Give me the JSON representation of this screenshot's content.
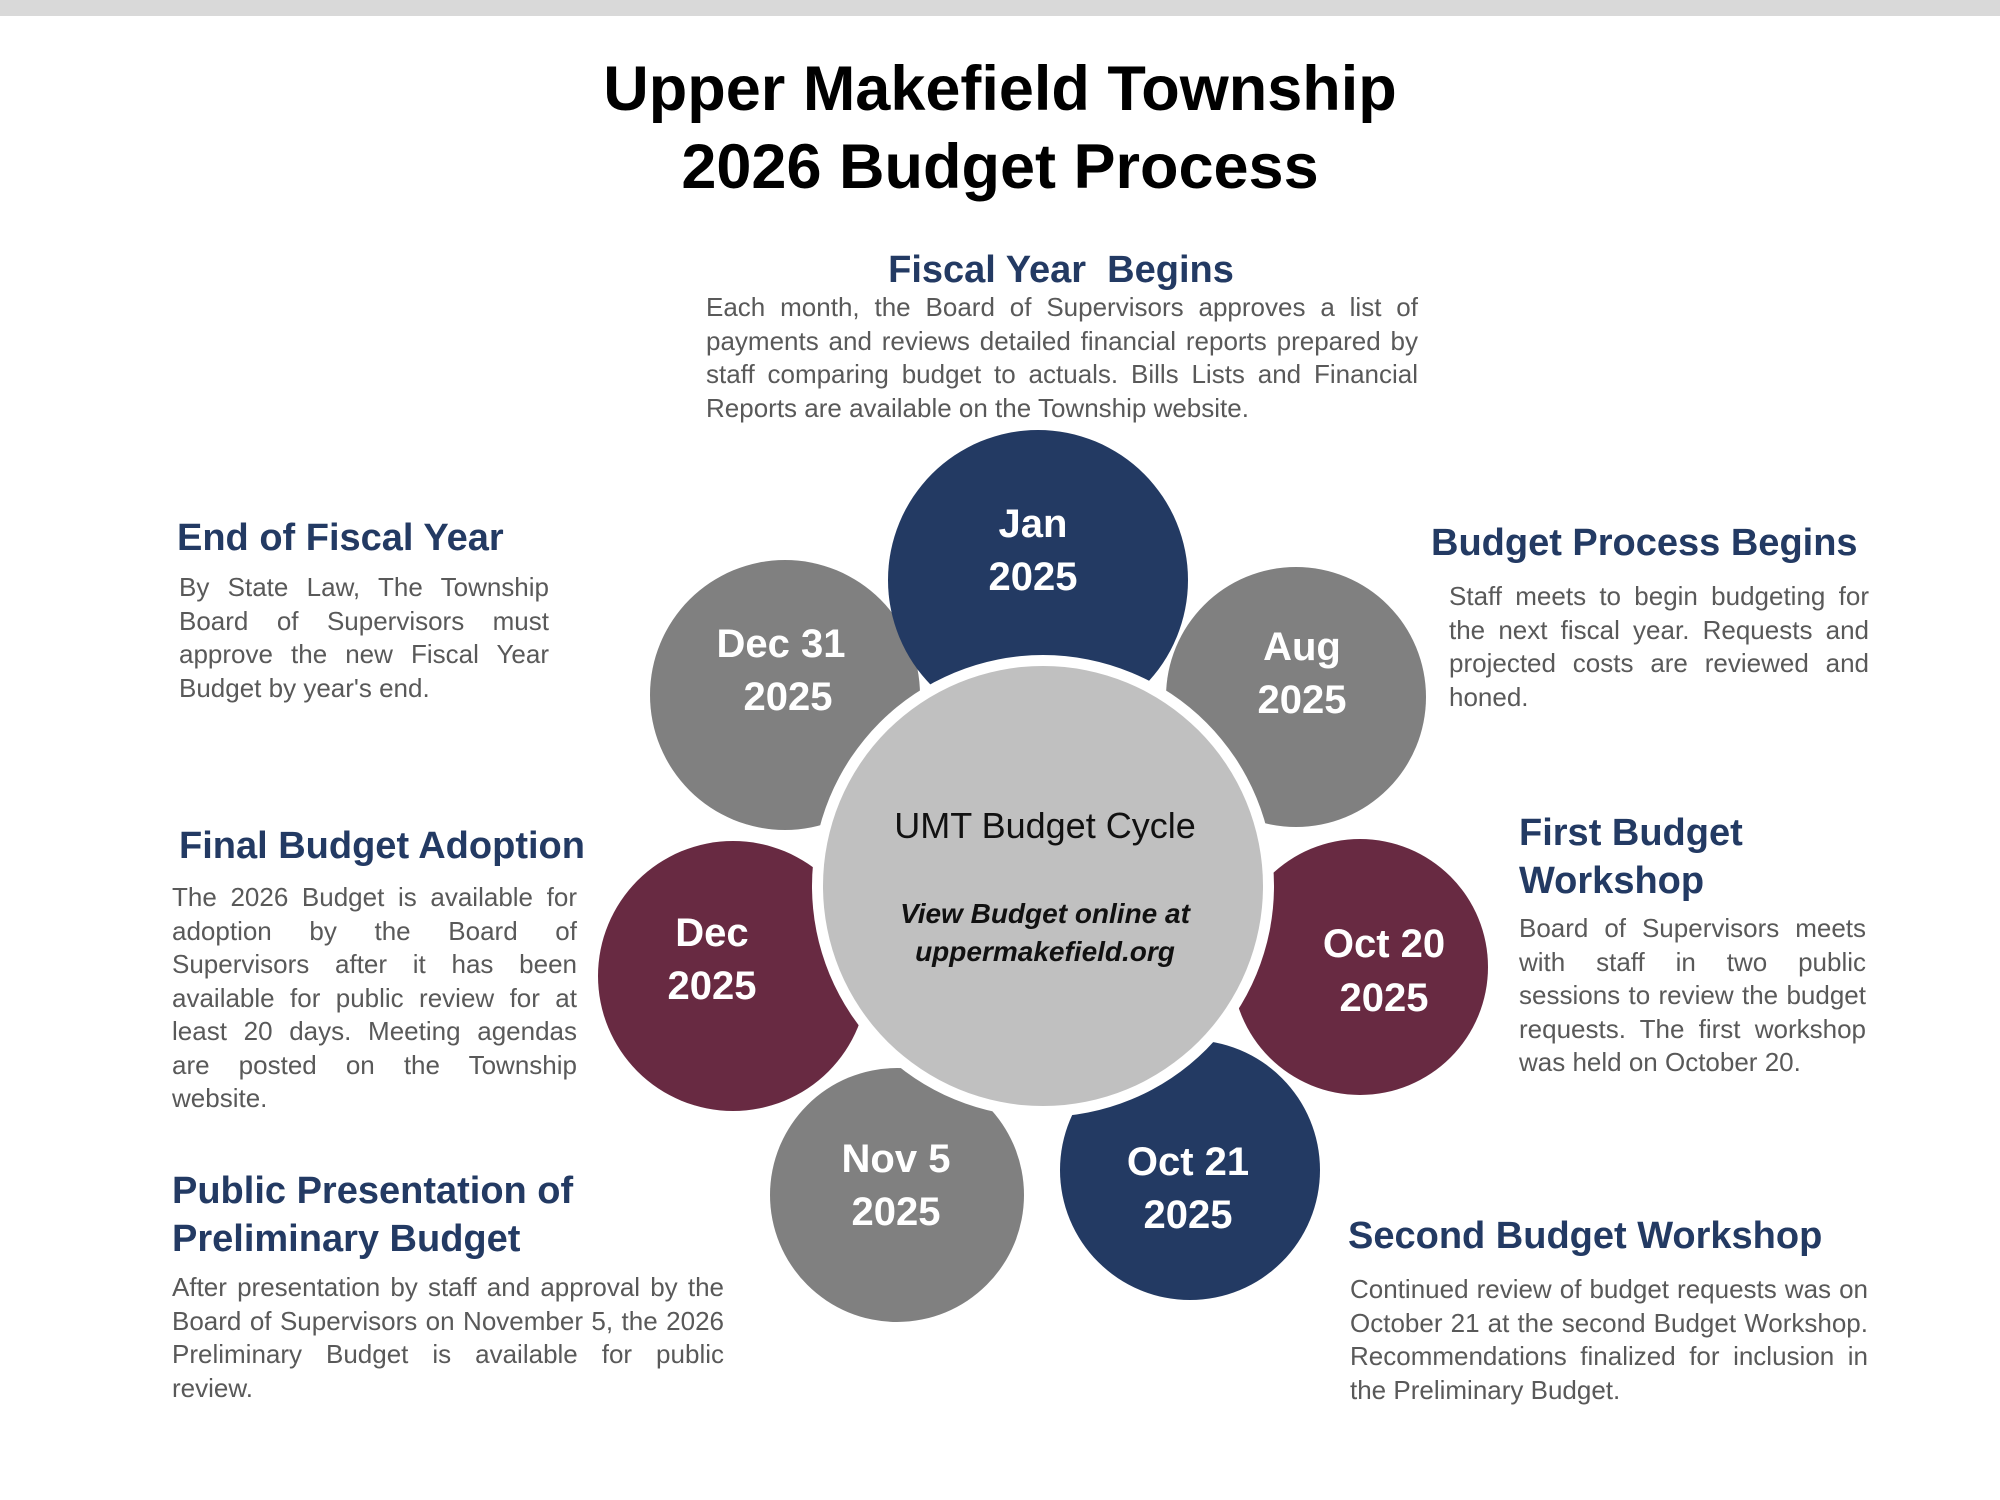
{
  "title": {
    "line1": "Upper Makefield Township",
    "line2": "2026 Budget Process"
  },
  "colors": {
    "navy": "#233a63",
    "gray": "#808080",
    "maroon": "#682a42",
    "center_fill": "#c0c0c0",
    "heading": "#233a63",
    "body_text": "#595959"
  },
  "center": {
    "title": "UMT Budget Cycle",
    "link_line1": "View Budget online at",
    "link_line2": "uppermakefield.org"
  },
  "milestones": [
    {
      "id": "jan",
      "date_line1": "Jan",
      "date_line2": "2025",
      "color": "navy",
      "heading": "Fiscal Year  Begins",
      "description": "Each month, the Board of Supervisors approves a list of payments and reviews detailed financial reports prepared by staff comparing budget to actuals. Bills Lists and Financial Reports are available on the Township website."
    },
    {
      "id": "aug",
      "date_line1": "Aug",
      "date_line2": "2025",
      "color": "gray",
      "heading": "Budget Process Begins",
      "description": "Staff meets to begin budgeting for the next fiscal year. Requests and projected costs are reviewed and honed."
    },
    {
      "id": "oct20",
      "date_line1": "Oct 20",
      "date_line2": "2025",
      "color": "maroon",
      "heading_line1": "First Budget",
      "heading_line2": "Workshop",
      "description": "Board of Supervisors meets with staff in two public sessions to review the budget requests. The first workshop was held on October 20."
    },
    {
      "id": "oct21",
      "date_line1": "Oct 21",
      "date_line2": "2025",
      "color": "navy",
      "heading": "Second Budget Workshop",
      "description": "Continued review of budget requests was on October 21 at the second Budget Workshop. Recommendations finalized for inclusion in the Preliminary Budget."
    },
    {
      "id": "nov5",
      "date_line1": "Nov 5",
      "date_line2": "2025",
      "color": "gray",
      "heading_line1": "Public Presentation of",
      "heading_line2": "Preliminary Budget",
      "description": "After presentation by staff and approval by the Board of Supervisors on November 5, the 2026 Preliminary Budget is available for public review."
    },
    {
      "id": "dec",
      "date_line1": "Dec",
      "date_line2": "2025",
      "color": "maroon",
      "heading": "Final Budget Adoption",
      "description": "The 2026 Budget is available for adoption by the Board of Supervisors after it has been available for public review for at least 20 days. Meeting agendas are posted on the Township website."
    },
    {
      "id": "dec31",
      "date_line1": "Dec 31",
      "date_line2": "2025",
      "color": "gray",
      "heading": "End of Fiscal Year",
      "description": "By State Law, The Township Board of Supervisors must approve the new Fiscal Year Budget by year's end."
    }
  ]
}
